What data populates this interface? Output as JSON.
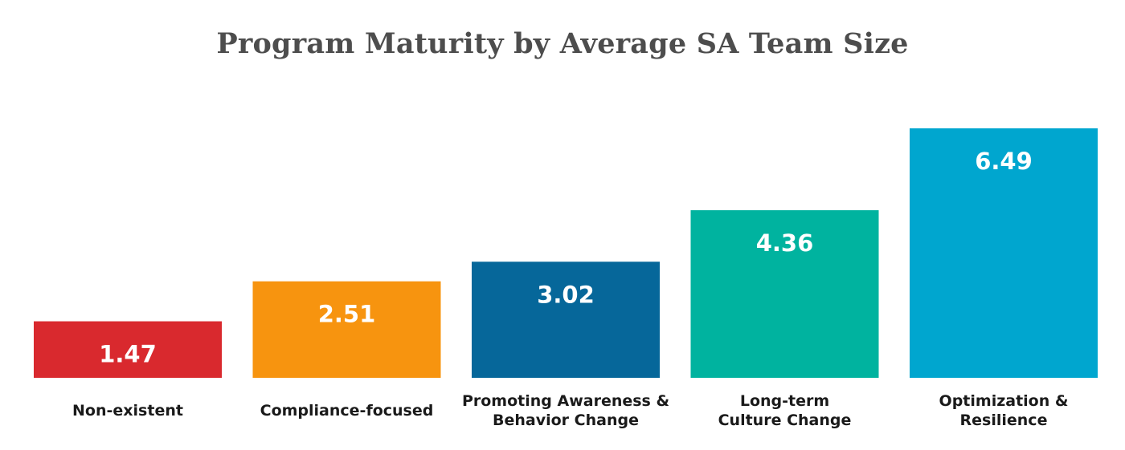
{
  "chart_data": {
    "type": "bar",
    "title": "Program Maturity by Average SA Team Size",
    "categories": [
      [
        "Non-existent"
      ],
      [
        "Compliance-focused"
      ],
      [
        "Promoting Awareness &",
        "Behavior Change"
      ],
      [
        "Long-term",
        "Culture Change"
      ],
      [
        "Optimization &",
        "Resilience"
      ]
    ],
    "values": [
      1.47,
      2.51,
      3.02,
      4.36,
      6.49
    ],
    "value_labels": [
      "1.47",
      "2.51",
      "3.02",
      "4.36",
      "6.49"
    ],
    "colors": [
      "#d9292e",
      "#f7940f",
      "#06679a",
      "#00b39f",
      "#00a6cf"
    ],
    "ylim": [
      0,
      6.49
    ],
    "grid": false,
    "legend": "none"
  }
}
